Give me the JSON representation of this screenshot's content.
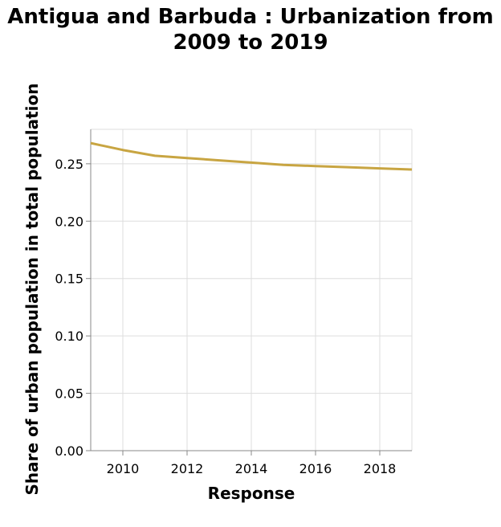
{
  "chart_data": {
    "type": "line",
    "title_lines": [
      "Antigua and Barbuda : Urbanization from",
      "2009 to 2019"
    ],
    "xlabel": "Response",
    "ylabel": "Share of urban population in total population",
    "x": [
      2009,
      2010,
      2011,
      2012,
      2013,
      2014,
      2015,
      2016,
      2017,
      2018,
      2019
    ],
    "series": [
      {
        "values": [
          0.268,
          0.262,
          0.257,
          0.255,
          0.253,
          0.251,
          0.249,
          0.248,
          0.247,
          0.246,
          0.245
        ]
      }
    ],
    "xlim": [
      2009,
      2019
    ],
    "ylim": [
      0,
      0.28
    ],
    "xticks": [
      2010,
      2012,
      2014,
      2016,
      2018
    ],
    "xtick_labels": [
      "2010",
      "2012",
      "2014",
      "2016",
      "2018"
    ],
    "yticks": [
      0,
      0.05,
      0.1,
      0.15,
      0.2,
      0.25
    ],
    "ytick_labels": [
      "0.00",
      "0.05",
      "0.10",
      "0.15",
      "0.20",
      "0.25"
    ],
    "grid": true,
    "line_color": "#c8a542"
  }
}
